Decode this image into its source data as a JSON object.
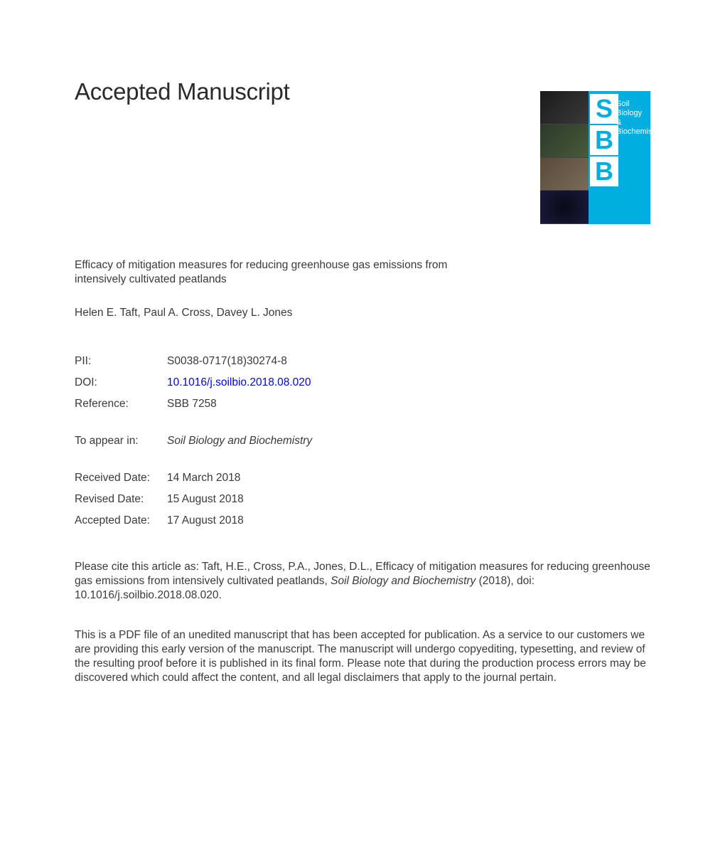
{
  "heading": "Accepted Manuscript",
  "article_title": "Efficacy of mitigation measures for reducing greenhouse gas emissions from intensively cultivated peatlands",
  "authors": "Helen E. Taft, Paul A. Cross, Davey L. Jones",
  "meta": {
    "pii": {
      "label": "PII:",
      "value": "S0038-0717(18)30274-8"
    },
    "doi": {
      "label": "DOI:",
      "value": "10.1016/j.soilbio.2018.08.020"
    },
    "reference": {
      "label": "Reference:",
      "value": "SBB 7258"
    },
    "to_appear": {
      "label": "To appear in:",
      "value": "Soil Biology and Biochemistry"
    },
    "received": {
      "label": "Received Date:",
      "value": "14 March 2018"
    },
    "revised": {
      "label": "Revised Date:",
      "value": "15 August 2018"
    },
    "accepted": {
      "label": "Accepted Date:",
      "value": "17 August 2018"
    }
  },
  "citation": {
    "prefix": "Please cite this article as: Taft, H.E., Cross, P.A., Jones, D.L., Efficacy of mitigation measures for reducing greenhouse gas emissions from intensively cultivated peatlands, ",
    "journal": "Soil Biology and Biochemistry",
    "suffix": " (2018), doi: 10.1016/j.soilbio.2018.08.020."
  },
  "disclaimer": "This is a PDF file of an unedited manuscript that has been accepted for publication. As a service to our customers we are providing this early version of the manuscript. The manuscript will undergo copyediting, typesetting, and review of the resulting proof before it is published in its final form. Please note that during the production process errors may be discovered which could affect the content, and all legal disclaimers that apply to the journal pertain.",
  "cover": {
    "letters": [
      "S",
      "B",
      "B"
    ],
    "title_line1": "Soil Biology &",
    "title_line2": "Biochemistry",
    "bg_color": "#00aee0",
    "text_color": "#ffffff"
  },
  "colors": {
    "body_text": "#3a3a3a",
    "link": "#0000ee",
    "background": "#ffffff"
  },
  "typography": {
    "heading_fontsize": 33,
    "body_fontsize": 15.5,
    "line_height": 20
  }
}
